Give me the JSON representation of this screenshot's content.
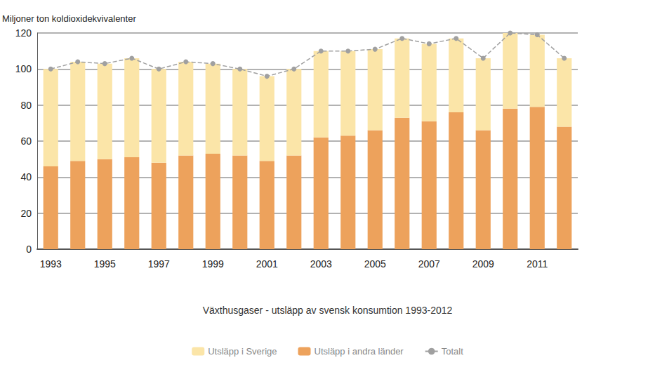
{
  "chart_data": {
    "type": "bar",
    "title": "Växthusgaser - utsläpp av svensk konsumtion 1993-2012",
    "y_label": "Miljoner ton koldioxidekvivalenter",
    "categories": [
      "1993",
      null,
      "1995",
      null,
      "1997",
      null,
      "1999",
      null,
      "2001",
      null,
      "2003",
      null,
      "2005",
      null,
      "2007",
      null,
      "2009",
      null,
      "2011",
      null
    ],
    "stacked": true,
    "series": [
      {
        "name": "Utsläpp i Sverige",
        "type": "bar",
        "color": "#fbe5a8",
        "values": [
          54,
          55,
          53,
          55,
          52,
          52,
          50,
          48,
          47,
          48,
          48,
          47,
          45,
          44,
          43,
          41,
          40,
          42,
          40,
          38
        ]
      },
      {
        "name": "Utsläpp i andra länder",
        "type": "bar",
        "color": "#eda25c",
        "values": [
          46,
          49,
          50,
          51,
          48,
          52,
          53,
          52,
          49,
          52,
          62,
          63,
          66,
          73,
          71,
          76,
          66,
          78,
          79,
          68
        ]
      },
      {
        "name": "Totalt",
        "type": "line",
        "color": "#a0a0a0",
        "marker": "circle",
        "line_style": "dashed",
        "values": [
          100,
          104,
          103,
          106,
          100,
          104,
          103,
          100,
          96,
          100,
          110,
          110,
          111,
          117,
          114,
          117,
          106,
          120,
          119,
          106
        ]
      }
    ],
    "ylim": [
      0,
      120
    ],
    "yticks": [
      0,
      20,
      40,
      60,
      80,
      100,
      120
    ],
    "grid": true,
    "legend": "bottom"
  }
}
